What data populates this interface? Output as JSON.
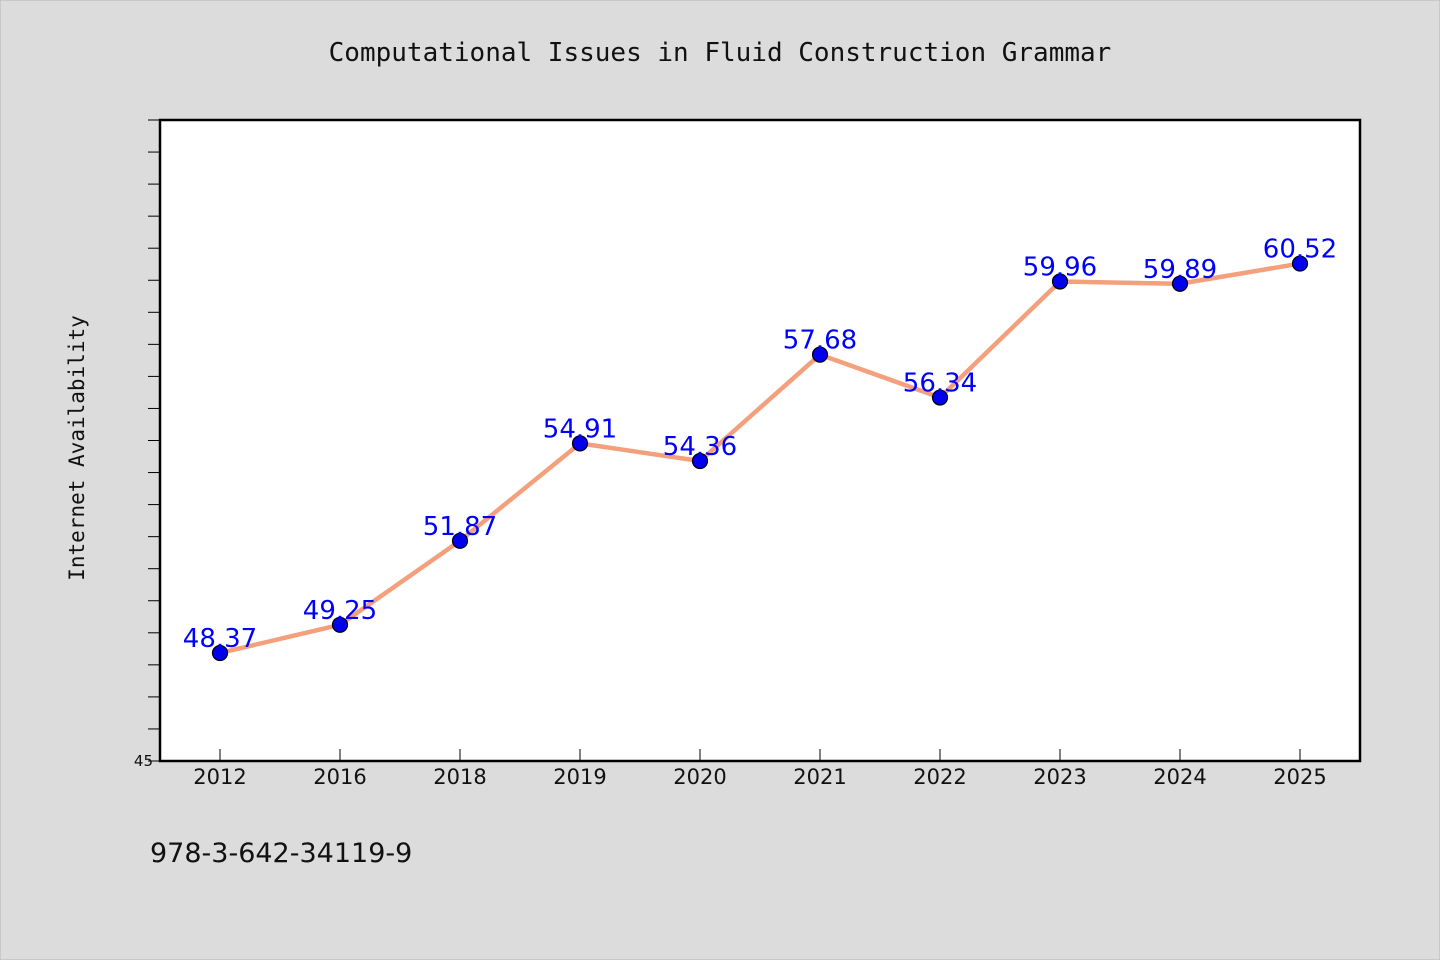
{
  "chart_data": {
    "type": "line",
    "title": "Computational Issues in Fluid Construction Grammar",
    "xlabel": "",
    "ylabel": "Internet Availability",
    "categories": [
      "2012",
      "2016",
      "2018",
      "2019",
      "2020",
      "2021",
      "2022",
      "2023",
      "2024",
      "2025"
    ],
    "values": [
      48.37,
      49.25,
      51.87,
      54.91,
      54.36,
      57.68,
      56.34,
      59.96,
      59.89,
      60.52
    ],
    "data_labels": [
      "48.37",
      "49.25",
      "51.87",
      "54.91",
      "54.36",
      "57.68",
      "56.34",
      "59.96",
      "59.89",
      "60.52"
    ],
    "ylim": [
      45,
      65
    ],
    "y_tick_labels": [
      "45"
    ],
    "grid": false,
    "legend": "none",
    "colors": {
      "line": "#f4a07c",
      "marker": "#0000ee",
      "label": "#0000ff",
      "background": "#dcdcdc",
      "plot_bg": "#ffffff"
    }
  },
  "footer_text": "978-3-642-34119-9"
}
